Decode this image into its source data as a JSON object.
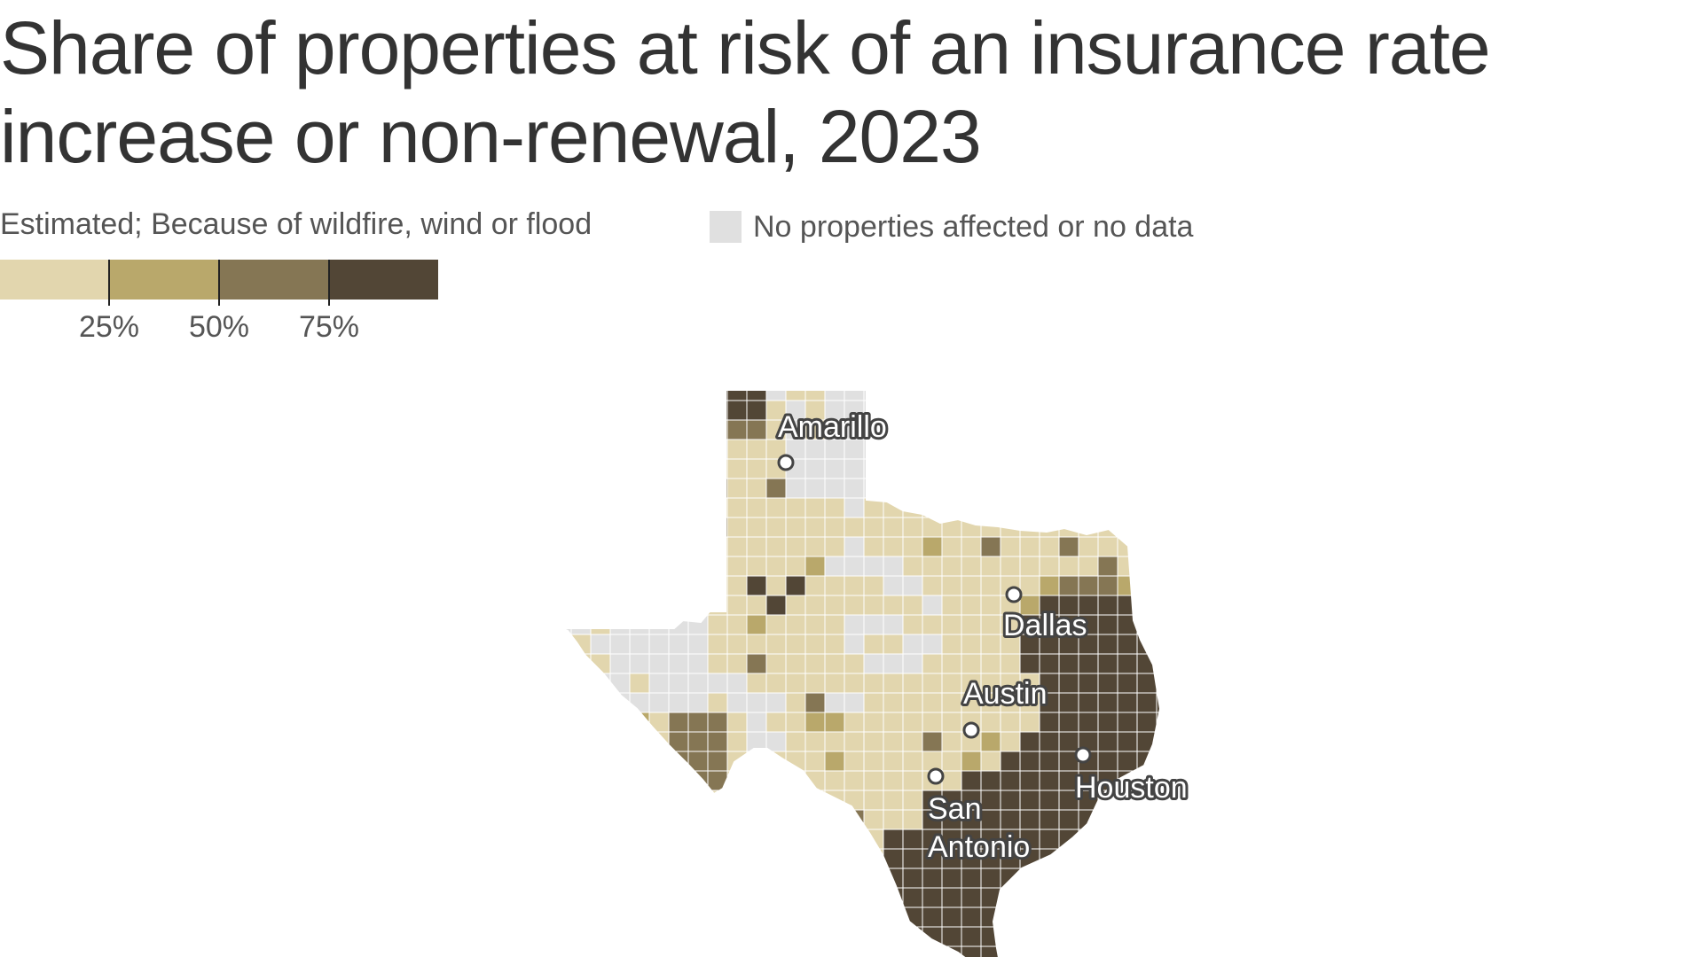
{
  "title_line1": "Share of properties at risk of an insurance rate",
  "title_line2": "increase or non-renewal, 2023",
  "legend": {
    "note": "Estimated; Because of wildfire, wind or flood",
    "no_data_label": "No properties affected or no data",
    "no_data_color": "#e0e0e0",
    "bins": [
      {
        "range": "0–25%",
        "color": "#e2d6ae"
      },
      {
        "range": "25–50%",
        "color": "#b9a86b"
      },
      {
        "range": "50–75%",
        "color": "#857654"
      },
      {
        "range": "75–100%",
        "color": "#524636"
      }
    ],
    "ticks": [
      "25%",
      "50%",
      "75%"
    ]
  },
  "cities": [
    {
      "name": "Amarillo",
      "label": "Amarillo"
    },
    {
      "name": "Dallas",
      "label": "Dallas"
    },
    {
      "name": "Austin",
      "label": "Austin"
    },
    {
      "name": "San Antonio",
      "label_line1": "San",
      "label_line2": "Antonio"
    },
    {
      "name": "Houston",
      "label": "Houston"
    }
  ],
  "map_data": {
    "region": "Texas",
    "unit": "county",
    "measure": "Share of properties at risk of an insurance rate increase or non-renewal, 2023",
    "pattern": "Highest shares (75%+) concentrated along the Gulf Coast, East Texas and the Rio Grande Valley; West Texas and the Panhandle mostly under 25% or no data"
  }
}
